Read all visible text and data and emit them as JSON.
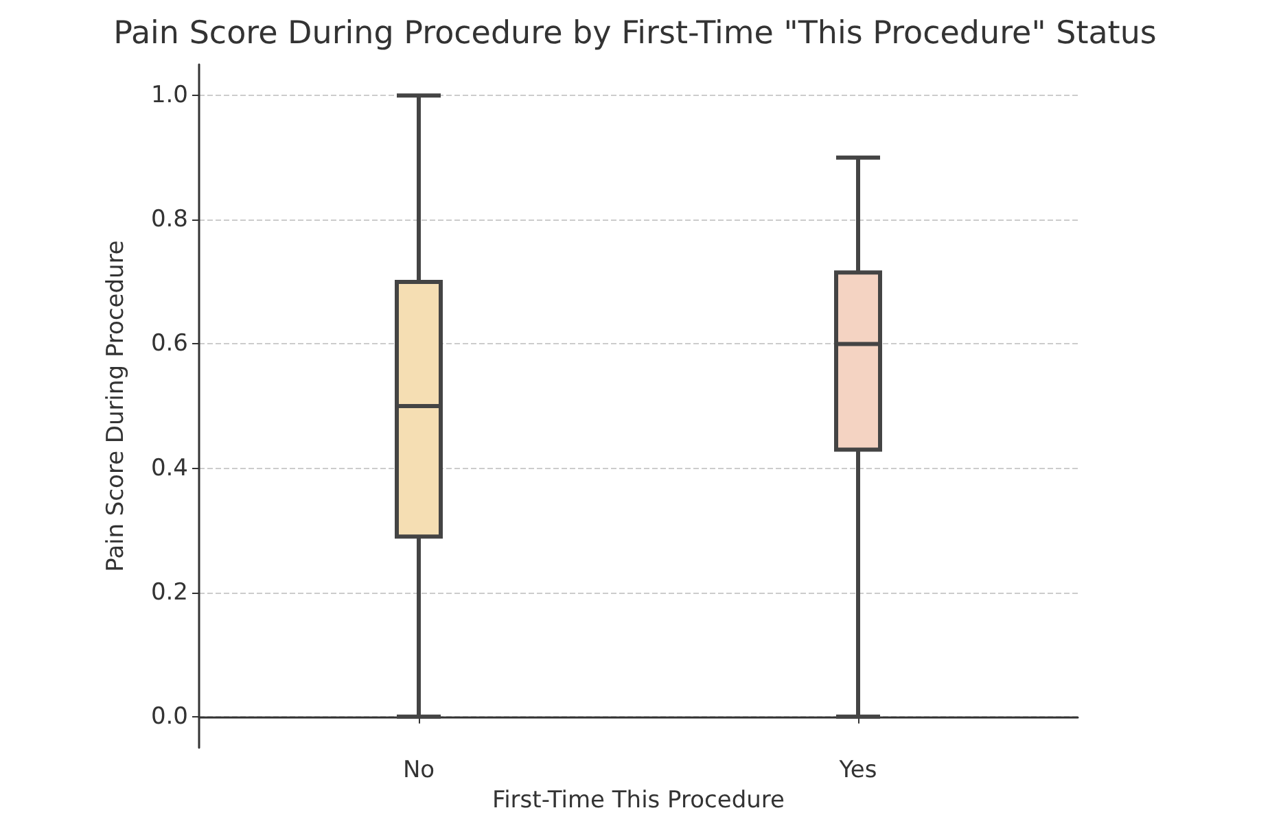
{
  "chart_data": {
    "type": "box",
    "title": "Pain Score During Procedure by First-Time \"This Procedure\" Status",
    "xlabel": "First-Time This Procedure",
    "ylabel": "Pain Score During Procedure",
    "categories": [
      "No",
      "Yes"
    ],
    "colors": [
      "#f5deb3",
      "#f4d3c2"
    ],
    "boxes": [
      {
        "low": 0,
        "q1": 0.29,
        "median": 0.5,
        "q3": 0.7,
        "high": 1.0
      },
      {
        "low": 0,
        "q1": 0.43,
        "median": 0.6,
        "q3": 0.715,
        "high": 0.9
      }
    ],
    "ylim": [
      -0.05,
      1.05
    ],
    "yticks": [
      {
        "value": 0,
        "label": "0.0"
      },
      {
        "value": 0.2,
        "label": "0.2"
      },
      {
        "value": 0.4,
        "label": "0.4"
      },
      {
        "value": 0.6,
        "label": "0.6"
      },
      {
        "value": 0.8,
        "label": "0.8"
      },
      {
        "value": 1.0,
        "label": "1.0"
      }
    ],
    "grid": "y"
  }
}
